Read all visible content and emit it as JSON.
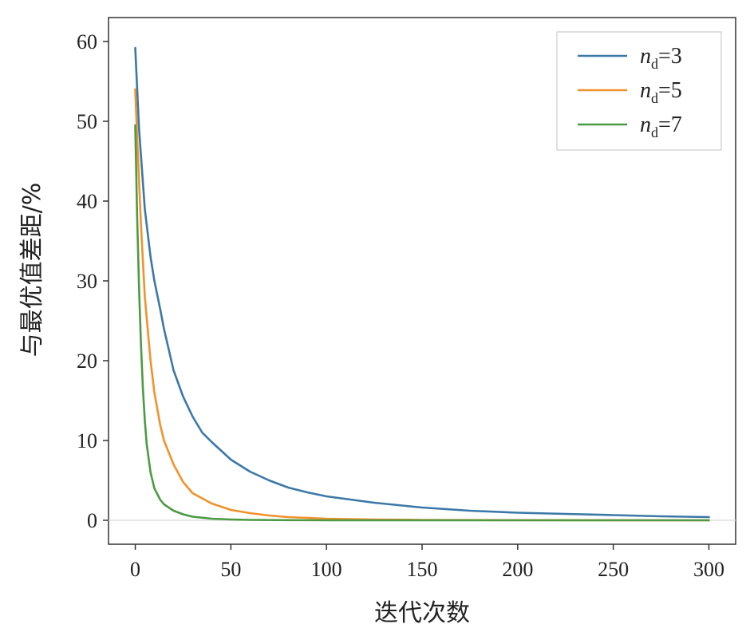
{
  "chart_data": {
    "type": "line",
    "xlabel": "迭代次数",
    "ylabel": "与最优值差距/%",
    "xlim": [
      -14,
      314
    ],
    "ylim": [
      -3,
      63
    ],
    "xticks": [
      0,
      50,
      100,
      150,
      200,
      250,
      300
    ],
    "yticks": [
      0,
      10,
      20,
      30,
      40,
      50,
      60
    ],
    "grid": false,
    "legend_position": "top-right",
    "series": [
      {
        "name": "n_d=3",
        "legend": {
          "main": "n",
          "sub": "d",
          "suffix": "=3"
        },
        "color": "#3b78a8",
        "x": [
          0,
          2,
          5,
          8,
          10,
          13,
          15,
          20,
          25,
          30,
          35,
          40,
          50,
          60,
          70,
          80,
          90,
          100,
          125,
          150,
          175,
          200,
          225,
          250,
          275,
          300
        ],
        "y": [
          59.2,
          49,
          39,
          33,
          30,
          26.5,
          24,
          18.8,
          15.5,
          13,
          11,
          9.8,
          7.6,
          6.1,
          5,
          4.1,
          3.5,
          3,
          2.2,
          1.6,
          1.2,
          0.95,
          0.8,
          0.65,
          0.5,
          0.4
        ]
      },
      {
        "name": "n_d=5",
        "legend": {
          "main": "n",
          "sub": "d",
          "suffix": "=5"
        },
        "color": "#f0922c",
        "x": [
          0,
          1,
          3,
          5,
          8,
          10,
          13,
          15,
          20,
          25,
          30,
          40,
          50,
          60,
          70,
          80,
          100,
          125,
          150,
          200,
          250,
          300
        ],
        "y": [
          54,
          48,
          37,
          28,
          20,
          16,
          12,
          10,
          7,
          4.8,
          3.4,
          2.1,
          1.3,
          0.9,
          0.6,
          0.4,
          0.2,
          0.1,
          0.05,
          0.02,
          0.01,
          0.0
        ]
      },
      {
        "name": "n_d=7",
        "legend": {
          "main": "n",
          "sub": "d",
          "suffix": "=7"
        },
        "color": "#4c9a43",
        "x": [
          0,
          1,
          2,
          3,
          4,
          5,
          6,
          8,
          10,
          13,
          15,
          20,
          25,
          30,
          40,
          50,
          60,
          80,
          100,
          150,
          200,
          250,
          300
        ],
        "y": [
          49.5,
          38,
          29,
          22,
          16.5,
          12.5,
          9.5,
          6,
          4,
          2.6,
          2,
          1.2,
          0.75,
          0.45,
          0.2,
          0.1,
          0.05,
          0.02,
          0.0,
          0.0,
          0.0,
          0.0,
          0.0
        ]
      }
    ]
  }
}
